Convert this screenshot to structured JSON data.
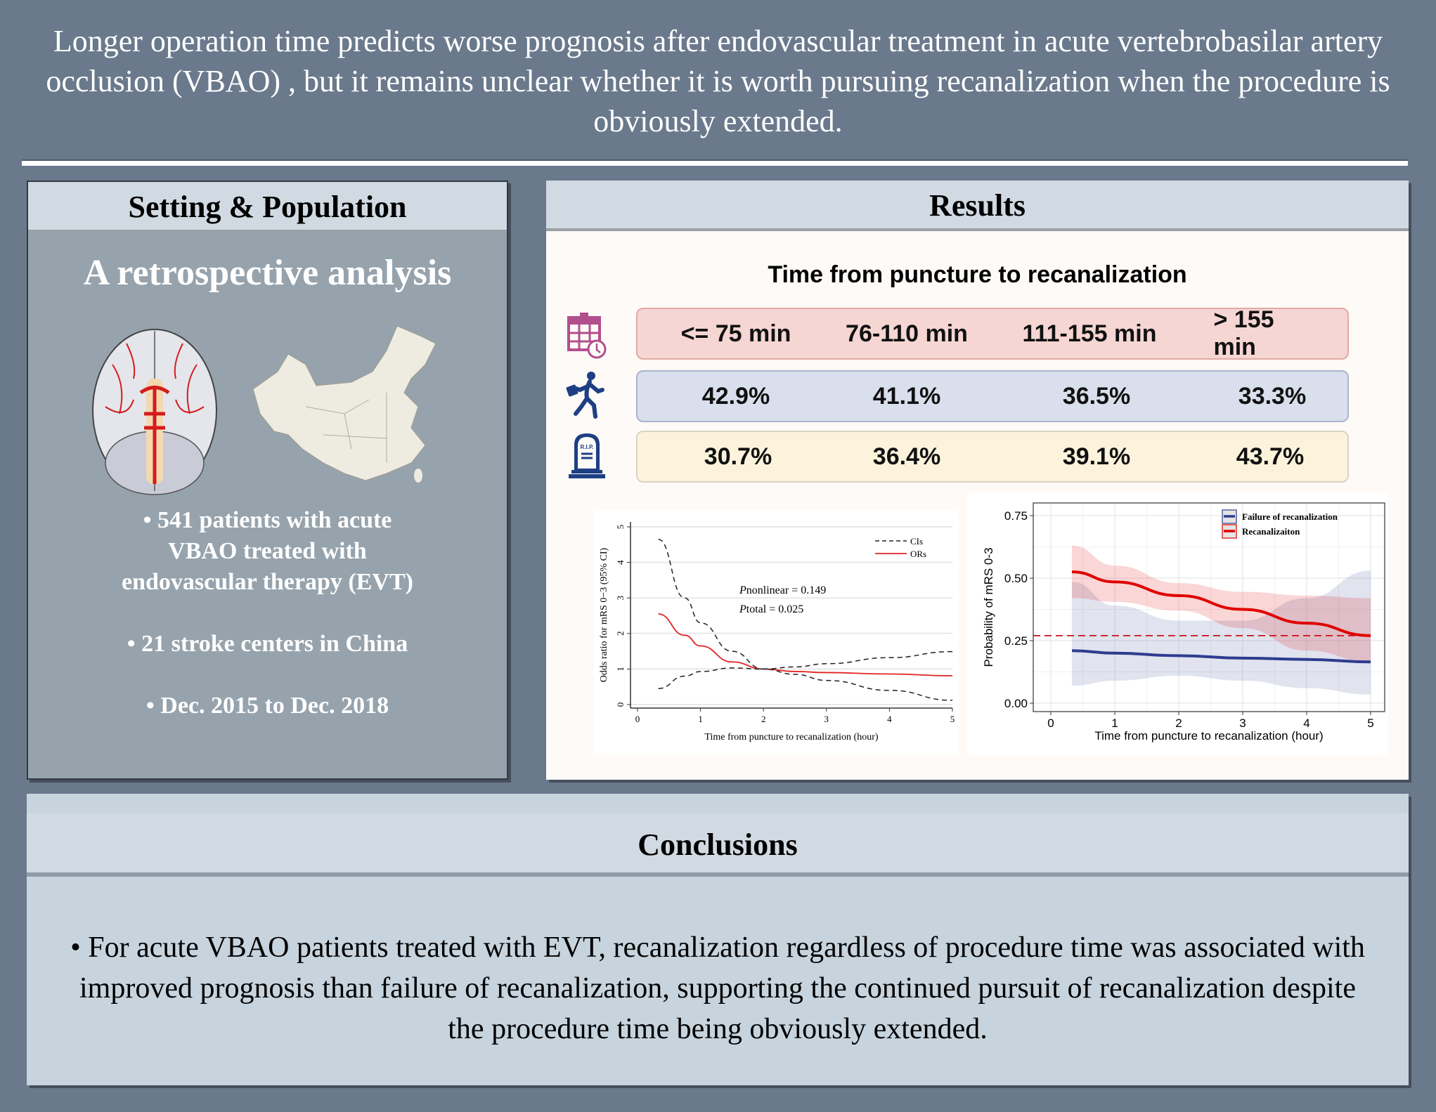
{
  "header": {
    "title": "Longer operation time predicts worse prognosis after endovascular treatment in acute vertebrobasilar artery occlusion (VBAO) , but it remains unclear whether it is worth pursuing recanalization when the procedure is obviously extended."
  },
  "setting": {
    "heading": "Setting & Population",
    "subtitle": "A retrospective analysis",
    "bullets": [
      "•  541 patients with acute VBAO treated with endovascular therapy (EVT)",
      "• 21 stroke centers in China",
      "• Dec. 2015 to Dec. 2018"
    ],
    "icons": [
      "brain-icon",
      "china-map-icon"
    ]
  },
  "results": {
    "heading": "Results",
    "table_title": "Time from  puncture to recanalization",
    "rows": [
      {
        "icon": "calendar-clock-icon",
        "values": [
          "<= 75 min",
          "76-110 min",
          "111-155 min",
          "> 155 min"
        ],
        "color": "#f5d6d2"
      },
      {
        "icon": "running-man-icon",
        "values": [
          "42.9%",
          "41.1%",
          "36.5%",
          "33.3%"
        ],
        "color": "#d9dfec"
      },
      {
        "icon": "tombstone-icon",
        "values": [
          "30.7%",
          "36.4%",
          "39.1%",
          "43.7%"
        ],
        "color": "#fdf3dc"
      }
    ]
  },
  "chart_data": [
    {
      "type": "line",
      "ylabel": "Odds ratio for mRS 0−3 (95% CI)",
      "xlabel": "Time from puncture to recanalization (hour)",
      "xlim": [
        0,
        5
      ],
      "ylim": [
        0,
        5
      ],
      "xticks": [
        0,
        1,
        2,
        3,
        4,
        5
      ],
      "yticks": [
        0,
        1,
        2,
        3,
        4,
        5
      ],
      "legend": "top-right",
      "annotations": [
        "Pnonlinear = 0.149",
        "Ptotal = 0.025"
      ],
      "series": [
        {
          "name": "ORs",
          "color": "#e32222",
          "x": [
            0.33,
            0.75,
            1,
            1.5,
            2,
            2.5,
            3,
            4,
            5
          ],
          "y": [
            2.55,
            1.95,
            1.65,
            1.2,
            1.0,
            0.93,
            0.9,
            0.86,
            0.81
          ]
        },
        {
          "name": "CIs",
          "style": "dashed",
          "color": "#222222",
          "x": [
            0.33,
            0.75,
            1,
            1.5,
            2,
            2.5,
            3,
            4,
            5
          ],
          "y": [
            4.65,
            3.0,
            2.3,
            1.5,
            1.0,
            0.85,
            0.68,
            0.4,
            0.12
          ]
        },
        {
          "name": "CIs-lower",
          "style": "dashed",
          "color": "#222222",
          "x": [
            0.33,
            0.75,
            1,
            1.5,
            2,
            2.5,
            3,
            4,
            5
          ],
          "y": [
            0.45,
            0.8,
            0.93,
            1.03,
            1.0,
            1.06,
            1.15,
            1.32,
            1.49
          ]
        }
      ]
    },
    {
      "type": "line",
      "ylabel": "Probability of mRS 0-3",
      "xlabel": "Time from puncture to recanalization (hour)",
      "xlim": [
        0,
        5
      ],
      "ylim": [
        0,
        0.75
      ],
      "xticks": [
        0,
        1,
        2,
        3,
        4,
        5
      ],
      "yticks": [
        "0.00",
        "0.25",
        "0.50",
        "0.75"
      ],
      "legend": "top-right",
      "reference_line": 0.27,
      "series": [
        {
          "name": "Failure of recanalization",
          "color": "#2e3c8f",
          "x": [
            0.33,
            1,
            2,
            3,
            4,
            5
          ],
          "y": [
            0.21,
            0.2,
            0.19,
            0.18,
            0.175,
            0.165
          ],
          "ci_low": [
            0.07,
            0.09,
            0.11,
            0.09,
            0.06,
            0.035
          ],
          "ci_high": [
            0.485,
            0.39,
            0.33,
            0.33,
            0.42,
            0.53
          ]
        },
        {
          "name": "Recanalizaiton",
          "color": "#e00000",
          "x": [
            0.33,
            1,
            2,
            3,
            4,
            5
          ],
          "y": [
            0.525,
            0.485,
            0.43,
            0.375,
            0.32,
            0.27
          ],
          "ci_low": [
            0.42,
            0.405,
            0.37,
            0.3,
            0.21,
            0.165
          ],
          "ci_high": [
            0.63,
            0.55,
            0.48,
            0.445,
            0.43,
            0.42
          ]
        }
      ]
    }
  ],
  "conclusions": {
    "heading": "Conclusions",
    "text": "• For acute VBAO patients treated with EVT, recanalization regardless of procedure time was associated with improved prognosis than failure of recanalization, supporting the continued pursuit of recanalization despite the procedure time being obviously extended."
  }
}
